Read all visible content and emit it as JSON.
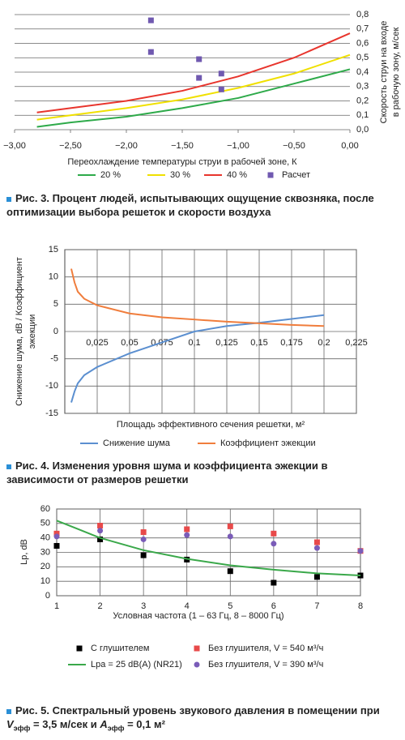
{
  "chart_data": [
    {
      "type": "line",
      "xlabel": "Переохлаждение температуры струи в рабочей зоне, К",
      "ylabel": [
        "Скорость струи на входе",
        "в рабочую зону, м/сек"
      ],
      "xlim": [
        -3,
        0
      ],
      "ylim": [
        0,
        0.8
      ],
      "xticks": [
        {
          "value": -3,
          "label": "−3,00"
        },
        {
          "value": -2.5,
          "label": "−2,50"
        },
        {
          "value": -2,
          "label": "−2,00"
        },
        {
          "value": -1.5,
          "label": "−1,50"
        },
        {
          "value": -1,
          "label": "−1,00"
        },
        {
          "value": -0.5,
          "label": "−0,50"
        },
        {
          "value": 0,
          "label": "0,00"
        }
      ],
      "yticks": [
        {
          "value": 0,
          "label": "0,0"
        },
        {
          "value": 0.1,
          "label": "0,1"
        },
        {
          "value": 0.2,
          "label": "0,2"
        },
        {
          "value": 0.3,
          "label": "0,3"
        },
        {
          "value": 0.4,
          "label": "0,4"
        },
        {
          "value": 0.5,
          "label": "0,5"
        },
        {
          "value": 0.6,
          "label": "0,6"
        },
        {
          "value": 0.7,
          "label": "0,7"
        },
        {
          "value": 0.8,
          "label": "0,8"
        }
      ],
      "grid": "y",
      "series": [
        {
          "name": "20 %",
          "color": "#2eaa4a",
          "style": "line",
          "x": [
            -2.8,
            -2.5,
            -2,
            -1.5,
            -1,
            -0.5,
            0
          ],
          "values": [
            0.02,
            0.05,
            0.09,
            0.15,
            0.22,
            0.32,
            0.42
          ]
        },
        {
          "name": "30 %",
          "color": "#f0e000",
          "style": "line",
          "x": [
            -2.8,
            -2.5,
            -2,
            -1.5,
            -1,
            -0.5,
            0
          ],
          "values": [
            0.07,
            0.1,
            0.15,
            0.21,
            0.29,
            0.39,
            0.52
          ]
        },
        {
          "name": "40 %",
          "color": "#e8352d",
          "style": "line",
          "x": [
            -2.8,
            -2.5,
            -2,
            -1.5,
            -1,
            -0.5,
            0
          ],
          "values": [
            0.12,
            0.15,
            0.2,
            0.27,
            0.37,
            0.5,
            0.67
          ]
        },
        {
          "name": "Расчет",
          "color": "#7059b0",
          "style": "points",
          "marker": "square",
          "x": [
            -1.78,
            -1.78,
            -1.35,
            -1.35,
            -1.15,
            -1.15
          ],
          "values": [
            0.76,
            0.54,
            0.49,
            0.36,
            0.39,
            0.28
          ]
        }
      ],
      "caption": "Рис. 3. Процент людей, испытывающих ощущение сквозняка, после оптимизации выбора решеток и скорости воздуха"
    },
    {
      "type": "line",
      "xlabel": "Площадь эффективного сечения решетки, м²",
      "ylabel": [
        "Снижение шума, dB / Коэффициент",
        "эжекции"
      ],
      "xlim": [
        0,
        0.225
      ],
      "ylim": [
        -15,
        15
      ],
      "xticks": [
        {
          "value": 0.025,
          "label": "0,025"
        },
        {
          "value": 0.05,
          "label": "0,05"
        },
        {
          "value": 0.075,
          "label": "0,075"
        },
        {
          "value": 0.1,
          "label": "0,1"
        },
        {
          "value": 0.125,
          "label": "0,125"
        },
        {
          "value": 0.15,
          "label": "0,15"
        },
        {
          "value": 0.175,
          "label": "0,175"
        },
        {
          "value": 0.2,
          "label": "0,2"
        },
        {
          "value": 0.225,
          "label": "0,225"
        }
      ],
      "yticks": [
        -15,
        -10,
        -5,
        0,
        5,
        10,
        15
      ],
      "grid": "both",
      "series": [
        {
          "name": "Снижение шума",
          "color": "#5b8fd0",
          "style": "line",
          "x": [
            0.005,
            0.0075,
            0.01,
            0.015,
            0.025,
            0.05,
            0.075,
            0.1,
            0.125,
            0.15,
            0.175,
            0.2
          ],
          "values": [
            -13,
            -11,
            -9.5,
            -8,
            -6.5,
            -4,
            -2,
            0,
            1,
            1.6,
            2.3,
            3
          ]
        },
        {
          "name": "Коэффициент эжекции",
          "color": "#f07d3c",
          "style": "line",
          "x": [
            0.005,
            0.0075,
            0.01,
            0.015,
            0.025,
            0.05,
            0.075,
            0.1,
            0.125,
            0.15,
            0.175,
            0.2
          ],
          "values": [
            11.5,
            9,
            7.3,
            6,
            4.8,
            3.3,
            2.6,
            2.2,
            1.8,
            1.5,
            1.2,
            1
          ]
        }
      ],
      "caption": "Рис. 4. Изменения уровня шума и коэффициента эжекции в зависимости от размеров решетки"
    },
    {
      "type": "line",
      "xlabel": "Условная частота (1 – 63 Гц, 8 – 8000 Гц)",
      "ylabel": [
        "Lp, dB"
      ],
      "xlim": [
        1,
        8
      ],
      "ylim": [
        0,
        60
      ],
      "xticks": [
        1,
        2,
        3,
        4,
        5,
        6,
        7,
        8
      ],
      "yticks": [
        0,
        10,
        20,
        30,
        40,
        50,
        60
      ],
      "grid": "both",
      "series": [
        {
          "name": "С глушителем",
          "color": "#000000",
          "style": "points",
          "marker": "square",
          "x": [
            1,
            2,
            3,
            4,
            5,
            6,
            7,
            8
          ],
          "values": [
            34.5,
            39,
            28,
            25,
            17,
            9,
            13,
            14
          ]
        },
        {
          "name": "Без глушителя, V = 540 м³/ч",
          "color": "#e84a4a",
          "style": "points",
          "marker": "square",
          "x": [
            1,
            2,
            3,
            4,
            5,
            6,
            7,
            8
          ],
          "values": [
            43,
            48.5,
            44,
            46,
            48,
            43,
            37,
            31
          ]
        },
        {
          "name": "Lpa = 25 dB(A) (NR21)",
          "color": "#3aa84a",
          "style": "line",
          "x": [
            1,
            1.5,
            2,
            3,
            4,
            5,
            6,
            7,
            8
          ],
          "values": [
            52,
            46,
            40,
            31.5,
            25.5,
            21,
            18,
            15.5,
            14
          ]
        },
        {
          "name": "Без глушителя, V = 390 м³/ч",
          "color": "#7a5cb8",
          "style": "points",
          "marker": "circle",
          "x": [
            1,
            2,
            3,
            4,
            5,
            6,
            7,
            8
          ],
          "values": [
            41,
            45,
            39,
            42,
            41,
            36,
            33,
            31
          ]
        }
      ],
      "caption": [
        "Рис. 5. Спектральный уровень звукового давления в помещении при ",
        "V",
        "эфф",
        " = 3,5 м/сек и ",
        "A",
        "эфф",
        " = 0,1 м²"
      ]
    }
  ]
}
